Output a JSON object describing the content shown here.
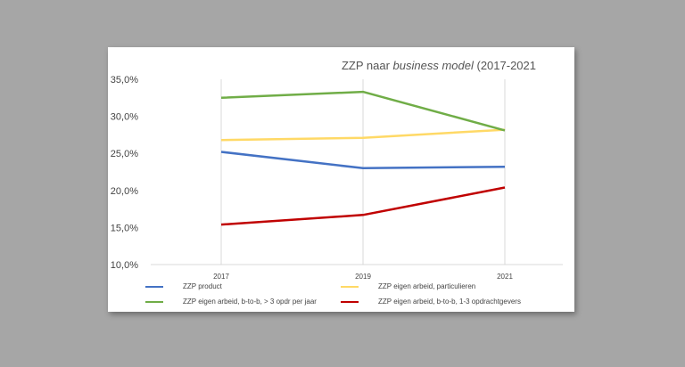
{
  "chart_data": {
    "type": "line",
    "title_main": "ZZP naar ",
    "title_italic": "business model",
    "title_tail": " (2017-2021",
    "x": [
      "2017",
      "2019",
      "2021"
    ],
    "yticks": [
      "10,0%",
      "15,0%",
      "20,0%",
      "25,0%",
      "30,0%",
      "35,0%"
    ],
    "ylim": [
      10,
      35
    ],
    "grid": "vertical",
    "legend_position": "bottom",
    "series": [
      {
        "name": "ZZP product",
        "color": "#4472c4",
        "values": [
          25.2,
          23.0,
          23.2
        ]
      },
      {
        "name": "ZZP eigen arbeid, particulieren",
        "color": "#ffd966",
        "values": [
          26.8,
          27.1,
          28.2
        ]
      },
      {
        "name": "ZZP eigen arbeid, b-to-b, > 3 opdr per jaar",
        "color": "#70ad47",
        "values": [
          32.5,
          33.3,
          28.1
        ]
      },
      {
        "name": "ZZP eigen arbeid, b-to-b, 1-3 opdrachtgevers",
        "color": "#c00000",
        "values": [
          15.4,
          16.7,
          20.4
        ]
      }
    ]
  }
}
